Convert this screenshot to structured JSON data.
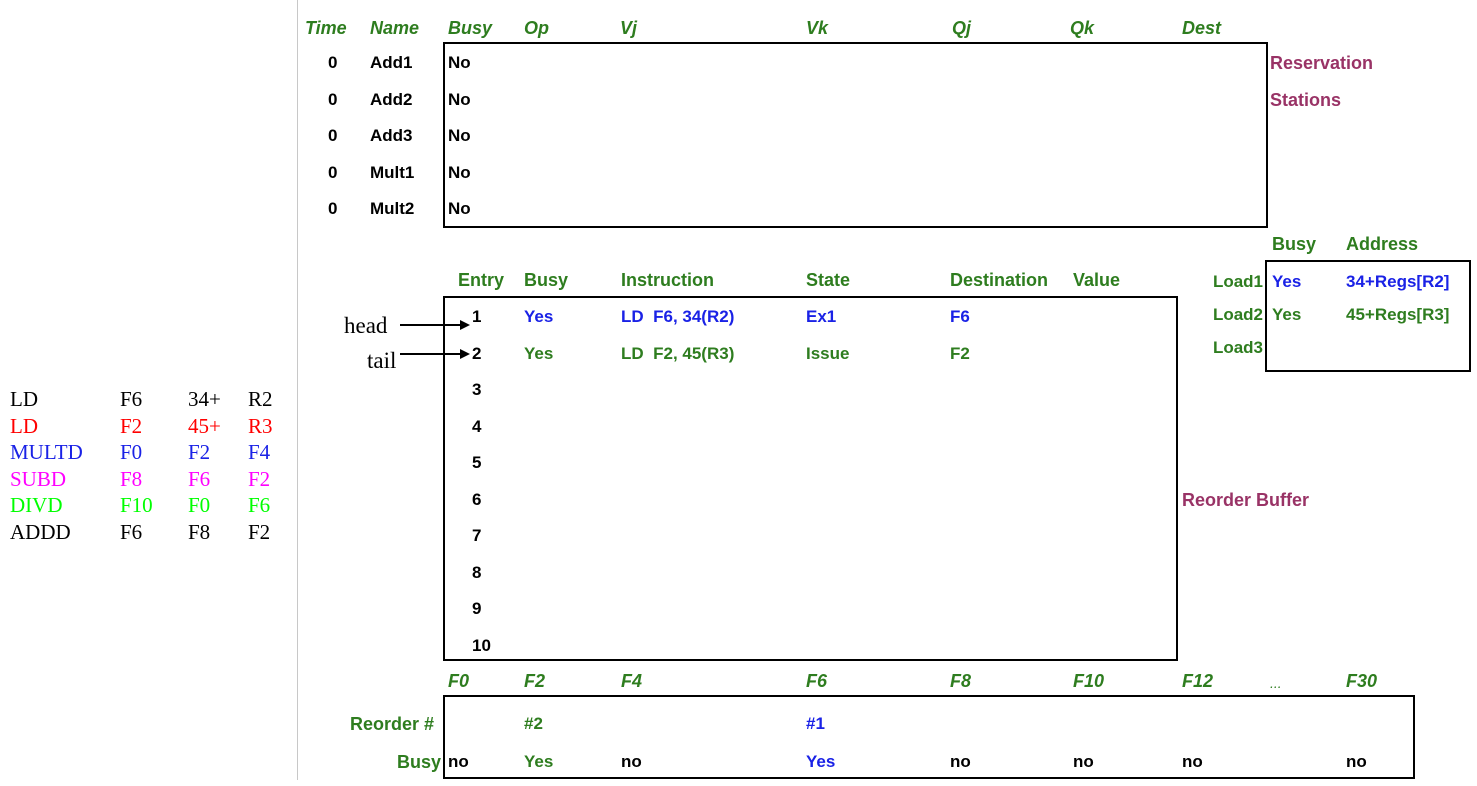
{
  "colors": {
    "green": "#2e7d1f",
    "blue": "#1a22e6",
    "red": "#ff0000",
    "magenta": "#ff00ff",
    "lime": "#00ff00",
    "maroon": "#993366",
    "black": "#000000"
  },
  "program": [
    {
      "op": "LD",
      "a": "F6",
      "b": "34+",
      "c": "R2",
      "color": "#000000"
    },
    {
      "op": "LD",
      "a": "F2",
      "b": "45+",
      "c": "R3",
      "color": "#ff0000"
    },
    {
      "op": "MULTD",
      "a": "F0",
      "b": "F2",
      "c": "F4",
      "color": "#1a22e6"
    },
    {
      "op": "SUBD",
      "a": "F8",
      "b": "F6",
      "c": "F2",
      "color": "#ff00ff"
    },
    {
      "op": "DIVD",
      "a": "F10",
      "b": "F0",
      "c": "F6",
      "color": "#00ff00"
    },
    {
      "op": "ADDD",
      "a": "F6",
      "b": "F8",
      "c": "F2",
      "color": "#000000"
    }
  ],
  "rs": {
    "headers": {
      "time": "Time",
      "name": "Name",
      "busy": "Busy",
      "op": "Op",
      "vj": "Vj",
      "vk": "Vk",
      "qj": "Qj",
      "qk": "Qk",
      "dest": "Dest"
    },
    "rows": [
      {
        "time": "0",
        "name": "Add1",
        "busy": "No"
      },
      {
        "time": "0",
        "name": "Add2",
        "busy": "No"
      },
      {
        "time": "0",
        "name": "Add3",
        "busy": "No"
      },
      {
        "time": "0",
        "name": "Mult1",
        "busy": "No"
      },
      {
        "time": "0",
        "name": "Mult2",
        "busy": "No"
      }
    ],
    "label_line1": "Reservation",
    "label_line2": "Stations"
  },
  "rob": {
    "headers": {
      "entry": "Entry",
      "busy": "Busy",
      "instruction": "Instruction",
      "state": "State",
      "destination": "Destination",
      "value": "Value"
    },
    "entries": [
      {
        "n": "1",
        "busy": "Yes",
        "instr": "LD  F6, 34(R2)",
        "state": "Ex1",
        "dest": "F6",
        "color": "#1a22e6"
      },
      {
        "n": "2",
        "busy": "Yes",
        "instr": "LD  F2, 45(R3)",
        "state": "Issue",
        "dest": "F2",
        "color": "#2e7d1f"
      },
      {
        "n": "3"
      },
      {
        "n": "4"
      },
      {
        "n": "5"
      },
      {
        "n": "6"
      },
      {
        "n": "7"
      },
      {
        "n": "8"
      },
      {
        "n": "9"
      },
      {
        "n": "10"
      }
    ],
    "head_label": "head",
    "tail_label": "tail",
    "label": "Reorder Buffer"
  },
  "load": {
    "headers": {
      "busy": "Busy",
      "address": "Address"
    },
    "rows": [
      {
        "name": "Load1",
        "busy": "Yes",
        "address": "34+Regs[R2]",
        "color": "#1a22e6"
      },
      {
        "name": "Load2",
        "busy": "Yes",
        "address": "45+Regs[R3]",
        "color": "#2e7d1f"
      },
      {
        "name": "Load3",
        "busy": "",
        "address": "",
        "color": "#2e7d1f"
      }
    ]
  },
  "regs": {
    "names": [
      "F0",
      "F2",
      "F4",
      "F6",
      "F8",
      "F10",
      "F12",
      "...",
      "F30"
    ],
    "reorder_label": "Reorder #",
    "busy_label": "Busy",
    "reorder": [
      "",
      "#2",
      "",
      "#1",
      "",
      "",
      "",
      "",
      ""
    ],
    "reorder_colors": [
      "#2e7d1f",
      "#2e7d1f",
      "#2e7d1f",
      "#1a22e6",
      "#2e7d1f",
      "#2e7d1f",
      "#2e7d1f",
      "#2e7d1f",
      "#2e7d1f"
    ],
    "busy": [
      "no",
      "Yes",
      "no",
      "Yes",
      "no",
      "no",
      "no",
      "",
      "no"
    ],
    "busy_colors": [
      "#000000",
      "#2e7d1f",
      "#000000",
      "#1a22e6",
      "#000000",
      "#000000",
      "#000000",
      "#000000",
      "#000000"
    ]
  }
}
